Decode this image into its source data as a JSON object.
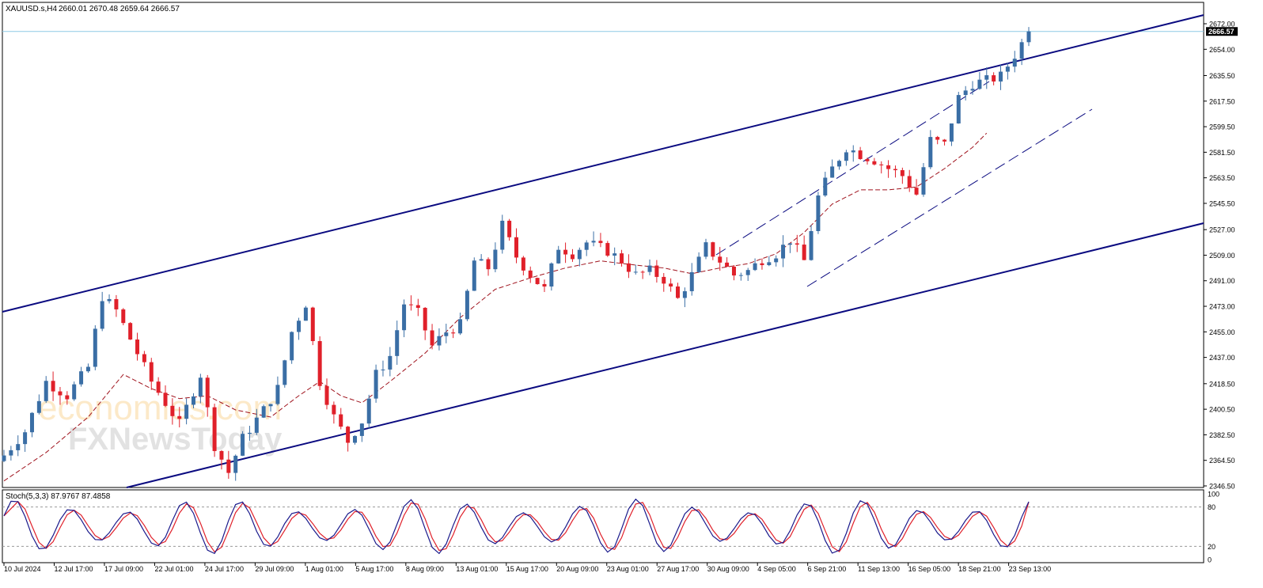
{
  "chart_data": [
    {
      "type": "candlestick",
      "header": {
        "symbol": "XAUUSD.s,H4",
        "ohlc": "2660.01 2670.48 2659.64 2666.57"
      },
      "last_price": "2666.57",
      "y_ticks": [
        "2672.00",
        "2654.00",
        "2635.50",
        "2617.50",
        "2599.50",
        "2581.50",
        "2563.50",
        "2545.50",
        "2527.00",
        "2509.00",
        "2491.00",
        "2473.00",
        "2455.00",
        "2437.00",
        "2418.50",
        "2400.50",
        "2382.50",
        "2364.50",
        "2346.50"
      ],
      "ylim": [
        2346.5,
        2672.0
      ],
      "x_ticks": [
        "10 Jul 2024",
        "12 Jul 17:00",
        "17 Jul 09:00",
        "22 Jul 01:00",
        "24 Jul 17:00",
        "29 Jul 09:00",
        "1 Aug 01:00",
        "5 Aug 17:00",
        "8 Aug 09:00",
        "13 Aug 01:00",
        "15 Aug 17:00",
        "20 Aug 09:00",
        "23 Aug 01:00",
        "27 Aug 17:00",
        "30 Aug 09:00",
        "4 Sep 05:00",
        "6 Sep 21:00",
        "11 Sep 13:00",
        "16 Sep 05:00",
        "18 Sep 21:00",
        "23 Sep 13:00"
      ],
      "close_path": [
        [
          0,
          2368
        ],
        [
          3,
          2385
        ],
        [
          6,
          2420
        ],
        [
          9,
          2410
        ],
        [
          12,
          2430
        ],
        [
          14,
          2480
        ],
        [
          16,
          2470
        ],
        [
          19,
          2440
        ],
        [
          21,
          2420
        ],
        [
          23,
          2405
        ],
        [
          25,
          2390
        ],
        [
          28,
          2425
        ],
        [
          30,
          2375
        ],
        [
          32,
          2356
        ],
        [
          34,
          2380
        ],
        [
          37,
          2400
        ],
        [
          39,
          2415
        ],
        [
          41,
          2455
        ],
        [
          43,
          2475
        ],
        [
          45,
          2420
        ],
        [
          47,
          2395
        ],
        [
          49,
          2378
        ],
        [
          51,
          2392
        ],
        [
          53,
          2425
        ],
        [
          55,
          2438
        ],
        [
          57,
          2475
        ],
        [
          59,
          2468
        ],
        [
          61,
          2445
        ],
        [
          63,
          2455
        ],
        [
          65,
          2460
        ],
        [
          67,
          2505
        ],
        [
          69,
          2500
        ],
        [
          71,
          2530
        ],
        [
          73,
          2508
        ],
        [
          75,
          2495
        ],
        [
          77,
          2485
        ],
        [
          79,
          2515
        ],
        [
          81,
          2510
        ],
        [
          83,
          2518
        ],
        [
          86,
          2512
        ],
        [
          88,
          2505
        ],
        [
          90,
          2495
        ],
        [
          92,
          2498
        ],
        [
          94,
          2492
        ],
        [
          96,
          2478
        ],
        [
          98,
          2495
        ],
        [
          100,
          2515
        ],
        [
          102,
          2505
        ],
        [
          104,
          2495
        ],
        [
          106,
          2498
        ],
        [
          108,
          2506
        ],
        [
          110,
          2510
        ],
        [
          112,
          2520
        ],
        [
          114,
          2505
        ],
        [
          116,
          2550
        ],
        [
          118,
          2570
        ],
        [
          120,
          2585
        ],
        [
          122,
          2580
        ],
        [
          124,
          2576
        ],
        [
          126,
          2570
        ],
        [
          128,
          2565
        ],
        [
          130,
          2552
        ],
        [
          132,
          2590
        ],
        [
          134,
          2587
        ],
        [
          136,
          2620
        ],
        [
          138,
          2630
        ],
        [
          140,
          2632
        ],
        [
          142,
          2635
        ],
        [
          144,
          2650
        ],
        [
          146,
          2666.57
        ]
      ],
      "sma_path": [
        [
          0,
          2350
        ],
        [
          6,
          2370
        ],
        [
          12,
          2395
        ],
        [
          17,
          2425
        ],
        [
          21,
          2415
        ],
        [
          25,
          2408
        ],
        [
          29,
          2410
        ],
        [
          33,
          2400
        ],
        [
          38,
          2395
        ],
        [
          42,
          2410
        ],
        [
          45,
          2420
        ],
        [
          48,
          2410
        ],
        [
          51,
          2405
        ],
        [
          55,
          2420
        ],
        [
          60,
          2440
        ],
        [
          65,
          2465
        ],
        [
          70,
          2485
        ],
        [
          75,
          2493
        ],
        [
          80,
          2500
        ],
        [
          85,
          2505
        ],
        [
          90,
          2502
        ],
        [
          94,
          2500
        ],
        [
          98,
          2496
        ],
        [
          102,
          2500
        ],
        [
          106,
          2503
        ],
        [
          110,
          2510
        ],
        [
          114,
          2525
        ],
        [
          118,
          2545
        ],
        [
          122,
          2555
        ],
        [
          126,
          2555
        ],
        [
          130,
          2557
        ],
        [
          134,
          2570
        ],
        [
          138,
          2585
        ],
        [
          140,
          2595
        ]
      ],
      "stochastic": {
        "label": "Stoch(5,3,3) 87.9767 87.4858",
        "k": 87.9767,
        "d": 87.4858,
        "levels": [
          20,
          80
        ],
        "axis_labels": [
          "100",
          "80",
          "20",
          "0"
        ]
      },
      "colors": {
        "bull": "#3a6ea5",
        "bear": "#e0202a",
        "channel": "#0a0a80",
        "sma": "#a0141e",
        "stoch_k": "#1a1a8c",
        "stoch_d": "#e0202a",
        "price_line": "#8ecae6",
        "price_tag_bg": "#000000"
      }
    }
  ],
  "watermark": {
    "line1": "economies.com",
    "line2": "FXNewsToday"
  }
}
